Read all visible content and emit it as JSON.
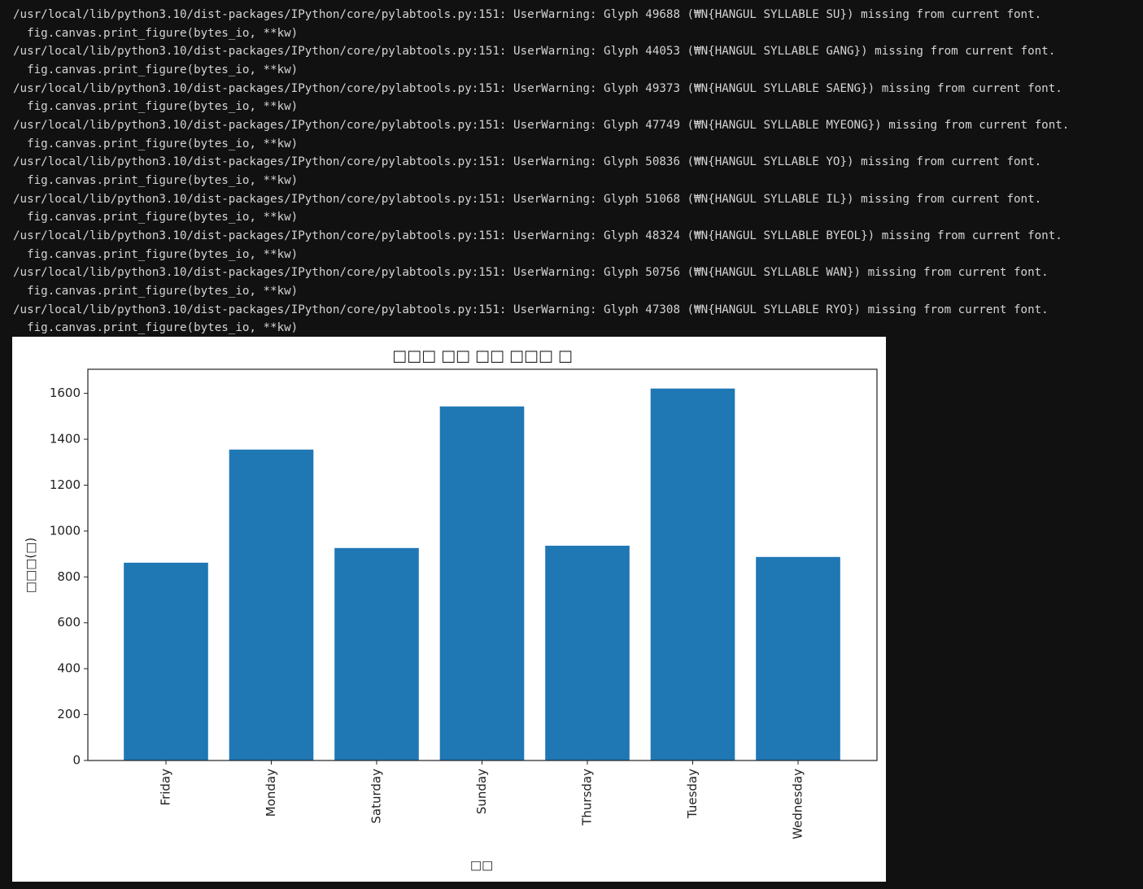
{
  "warnings": [
    {
      "message": "/usr/local/lib/python3.10/dist-packages/IPython/core/pylabtools.py:151: UserWarning: Glyph 49688 (₩N{HANGUL SYLLABLE SU}) missing from current font.",
      "source": "  fig.canvas.print_figure(bytes_io, **kw)"
    },
    {
      "message": "/usr/local/lib/python3.10/dist-packages/IPython/core/pylabtools.py:151: UserWarning: Glyph 44053 (₩N{HANGUL SYLLABLE GANG}) missing from current font.",
      "source": "  fig.canvas.print_figure(bytes_io, **kw)"
    },
    {
      "message": "/usr/local/lib/python3.10/dist-packages/IPython/core/pylabtools.py:151: UserWarning: Glyph 49373 (₩N{HANGUL SYLLABLE SAENG}) missing from current font.",
      "source": "  fig.canvas.print_figure(bytes_io, **kw)"
    },
    {
      "message": "/usr/local/lib/python3.10/dist-packages/IPython/core/pylabtools.py:151: UserWarning: Glyph 47749 (₩N{HANGUL SYLLABLE MYEONG}) missing from current font.",
      "source": "  fig.canvas.print_figure(bytes_io, **kw)"
    },
    {
      "message": "/usr/local/lib/python3.10/dist-packages/IPython/core/pylabtools.py:151: UserWarning: Glyph 50836 (₩N{HANGUL SYLLABLE YO}) missing from current font.",
      "source": "  fig.canvas.print_figure(bytes_io, **kw)"
    },
    {
      "message": "/usr/local/lib/python3.10/dist-packages/IPython/core/pylabtools.py:151: UserWarning: Glyph 51068 (₩N{HANGUL SYLLABLE IL}) missing from current font.",
      "source": "  fig.canvas.print_figure(bytes_io, **kw)"
    },
    {
      "message": "/usr/local/lib/python3.10/dist-packages/IPython/core/pylabtools.py:151: UserWarning: Glyph 48324 (₩N{HANGUL SYLLABLE BYEOL}) missing from current font.",
      "source": "  fig.canvas.print_figure(bytes_io, **kw)"
    },
    {
      "message": "/usr/local/lib/python3.10/dist-packages/IPython/core/pylabtools.py:151: UserWarning: Glyph 50756 (₩N{HANGUL SYLLABLE WAN}) missing from current font.",
      "source": "  fig.canvas.print_figure(bytes_io, **kw)"
    },
    {
      "message": "/usr/local/lib/python3.10/dist-packages/IPython/core/pylabtools.py:151: UserWarning: Glyph 47308 (₩N{HANGUL SYLLABLE RYO}) missing from current font.",
      "source": "  fig.canvas.print_figure(bytes_io, **kw)"
    }
  ],
  "chart_data": {
    "type": "bar",
    "title": "□□□ □□ □□ □□□ □",
    "x_label": "□□",
    "y_label": "□□□(□)",
    "categories": [
      "Friday",
      "Monday",
      "Saturday",
      "Sunday",
      "Thursday",
      "Tuesday",
      "Wednesday"
    ],
    "values": [
      862,
      1355,
      926,
      1543,
      936,
      1621,
      887
    ],
    "color": "#1f77b4",
    "ylim": [
      0,
      1705
    ],
    "yticks": [
      0,
      200,
      400,
      600,
      800,
      1000,
      1200,
      1400,
      1600
    ]
  }
}
